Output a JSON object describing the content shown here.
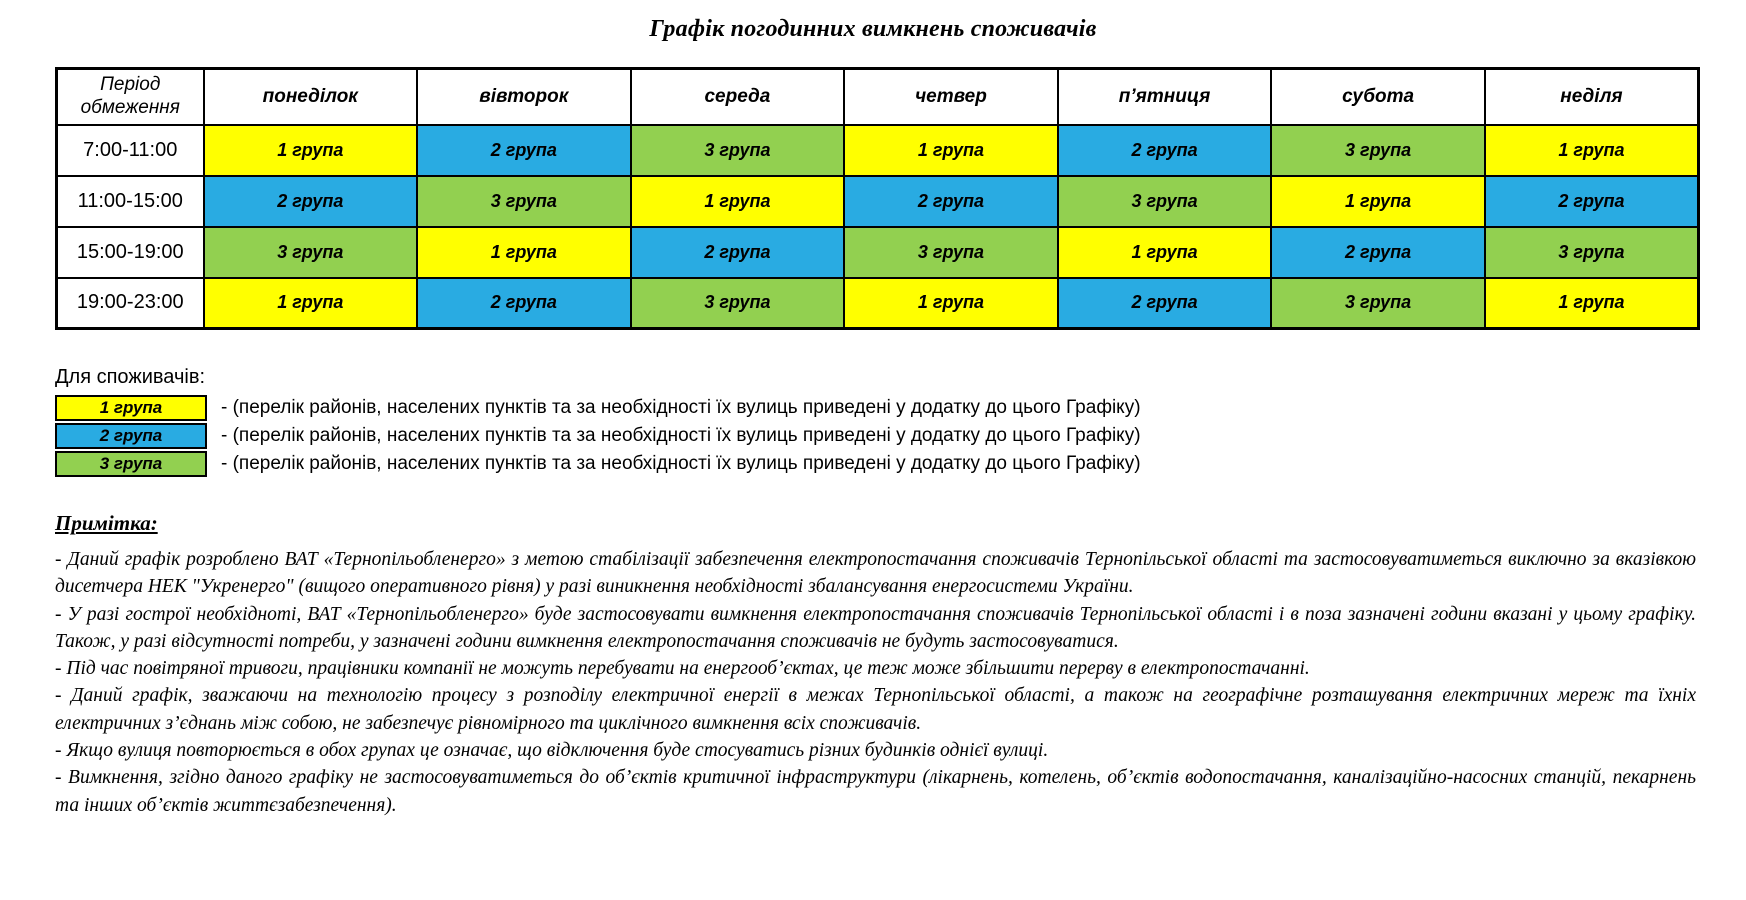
{
  "title": "Графік погодинних вимкнень споживачів",
  "table": {
    "corner_header": "Період обмеження",
    "day_headers": [
      "понеділок",
      "вівторок",
      "середа",
      "четвер",
      "п’ятниця",
      "субота",
      "неділя"
    ],
    "groups": {
      "1": {
        "label": "1 група",
        "color": "#FFFF00"
      },
      "2": {
        "label": "2 група",
        "color": "#29ABE2"
      },
      "3": {
        "label": "3 група",
        "color": "#92D050"
      }
    },
    "rows": [
      {
        "period": "7:00-11:00",
        "cells": [
          "1",
          "2",
          "3",
          "1",
          "2",
          "3",
          "1"
        ]
      },
      {
        "period": "11:00-15:00",
        "cells": [
          "2",
          "3",
          "1",
          "2",
          "3",
          "1",
          "2"
        ]
      },
      {
        "period": "15:00-19:00",
        "cells": [
          "3",
          "1",
          "2",
          "3",
          "1",
          "2",
          "3"
        ]
      },
      {
        "period": "19:00-23:00",
        "cells": [
          "1",
          "2",
          "3",
          "1",
          "2",
          "3",
          "1"
        ]
      }
    ]
  },
  "legend": {
    "heading": "Для споживачів:",
    "items": [
      {
        "group": "1",
        "description": "- (перелік районів, населених пунктів та за необхідності їх вулиць приведені у додатку до цього Графіку)"
      },
      {
        "group": "2",
        "description": "- (перелік районів, населених пунктів та за необхідності їх вулиць приведені у додатку до цього Графіку)"
      },
      {
        "group": "3",
        "description": "- (перелік районів, населених пунктів та за необхідності їх вулиць приведені у додатку до цього Графіку)"
      }
    ]
  },
  "notes": {
    "heading": "Примітка:",
    "paragraphs": [
      "- Даний графік розроблено ВАТ «Тернопільобленерго» з метою стабілізації забезпечення електропостачання споживачів Тернопільської області та застосовуватиметься виключно за вказівкою дисетчера НЕК \"Укренерго\" (вищого оперативного рівня)  у разі виникнення необхідності збалансування енергосистеми України.",
      "- У разі гострої необхідноті, ВАТ «Тернопільобленерго» буде застосовувати вимкнення електропостачання споживачів Тернопільської області і в поза зазначені години вказані у цьому графіку. Також, у разі відсутності потреби, у зазначені години вимкнення електропостачання споживачів не будуть застосовуватися.",
      "- Під час повітряної тривоги, працівники компанії не можуть перебувати на енергооб’єктах, це теж може збільшити перерву в електропостачанні.",
      "- Даний графік, зважаючи на технологію процесу з розподілу електричної енергії в межах Тернопільської області, а також на географічне розташування електричних мереж та їхніх електричних з’єднань між собою, не забезпечує рівномірного та циклічного вимкнення всіх споживачів.",
      "- Якщо  вулиця повторюється в обох групах це означає, що відключення буде стосуватись різних будинків однієї вулиці.",
      "- Вимкнення, згідно даного графіку не застосовуватиметься  до об’єктів критичної інфраструктури (лікарнень, котелень, об’єктів водопостачання, каналізаційно-насосних станцій, пекарнень та інших об’єктів життєзабезпечення)."
    ]
  }
}
